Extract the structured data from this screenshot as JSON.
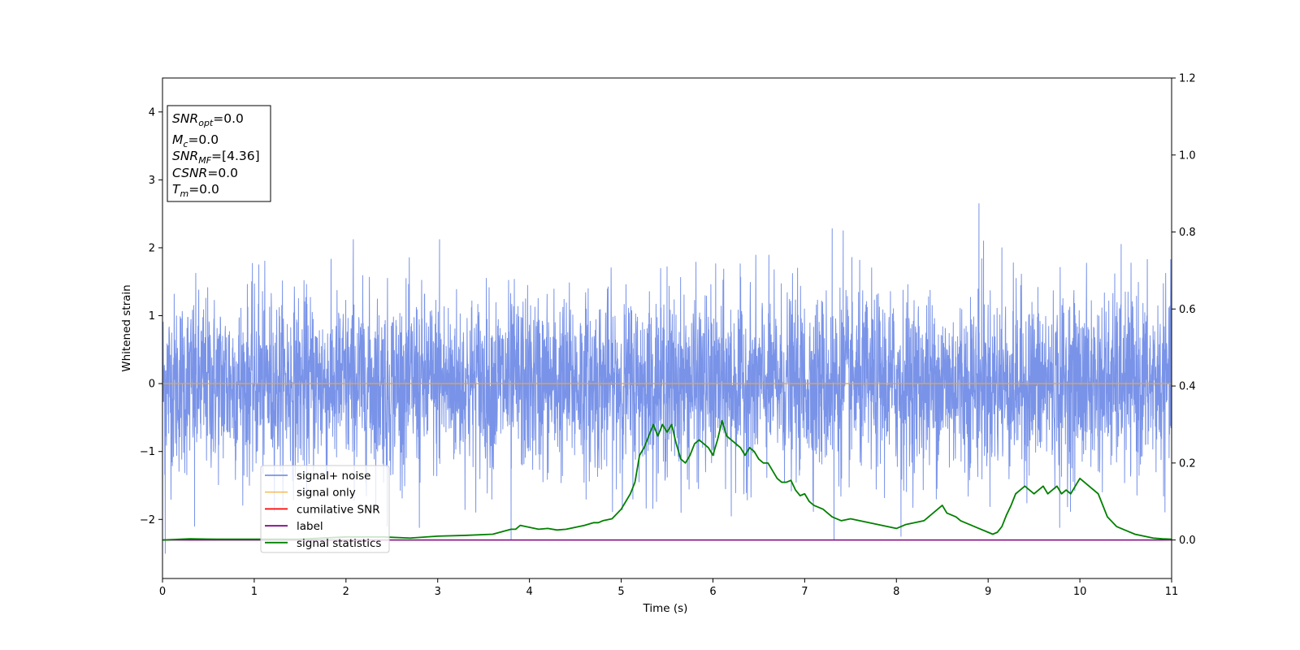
{
  "chart_data": {
    "type": "line",
    "xlabel": "Time (s)",
    "ylabel": "Whitened strain",
    "xlim": [
      0,
      11
    ],
    "ylim": [
      -2.87,
      4.5
    ],
    "y2lim": [
      -0.1,
      1.2
    ],
    "xticks": [
      0,
      1,
      2,
      3,
      4,
      5,
      6,
      7,
      8,
      9,
      10,
      11
    ],
    "yticks": [
      -2,
      -1,
      0,
      1,
      2,
      3,
      4
    ],
    "y2ticks": [
      0.0,
      0.2,
      0.4,
      0.6,
      0.8,
      1.0,
      1.2
    ],
    "xtick_labels": [
      "0",
      "1",
      "2",
      "3",
      "4",
      "5",
      "6",
      "7",
      "8",
      "9",
      "10",
      "11"
    ],
    "ytick_labels": [
      "−2",
      "−1",
      "0",
      "1",
      "2",
      "3",
      "4"
    ],
    "y2tick_labels": [
      "0.0",
      "0.2",
      "0.4",
      "0.6",
      "0.8",
      "1.0",
      "1.2"
    ],
    "grid": false,
    "legend_placement": "lower-left",
    "info_box": {
      "snr_opt": {
        "main": "SNR",
        "sub": "opt",
        "value": "=0.0"
      },
      "mc": {
        "main": "M",
        "sub": "c",
        "value": "=0.0"
      },
      "snr_mf": {
        "main": "SNR",
        "sub": "MF",
        "value": "=[4.36]"
      },
      "csnr": {
        "main": "CSNR",
        "value": "=0.0"
      },
      "tm": {
        "main": "T",
        "sub": "m",
        "value": "=0.0"
      }
    },
    "series": [
      {
        "name": "signal+ noise",
        "color": "#7993e8",
        "axis": "left",
        "description": "dense noise band, amplitude roughly ±1.3 with spikes to ±2.3",
        "noise_envelope": 1.25,
        "spikes": [
          [
            0.03,
            -2.5
          ],
          [
            0.35,
            -2.1
          ],
          [
            1.05,
            1.75
          ],
          [
            2.08,
            2.12
          ],
          [
            2.45,
            -2.1
          ],
          [
            2.8,
            -2.12
          ],
          [
            3.02,
            2.12
          ],
          [
            3.8,
            -2.3
          ],
          [
            5.5,
            1.72
          ],
          [
            6.2,
            -1.95
          ],
          [
            7.3,
            2.28
          ],
          [
            7.32,
            -2.3
          ],
          [
            7.42,
            2.25
          ],
          [
            8.05,
            -2.25
          ],
          [
            8.9,
            2.65
          ],
          [
            8.95,
            2.1
          ],
          [
            9.15,
            2.0
          ],
          [
            9.78,
            -2.12
          ],
          [
            10.45,
            2.05
          ],
          [
            11.0,
            1.7
          ]
        ]
      },
      {
        "name": "signal only",
        "color": "#f5a623",
        "axis": "left",
        "x": [
          0,
          11
        ],
        "y": [
          0,
          0
        ]
      },
      {
        "name": "cumilative SNR",
        "color": "#ff0000",
        "axis": "right",
        "x": [],
        "y": []
      },
      {
        "name": "label",
        "color": "#800080",
        "axis": "right",
        "x": [
          0,
          11
        ],
        "y": [
          0,
          0
        ]
      },
      {
        "name": "signal statistics",
        "color": "#008000",
        "axis": "right",
        "x": [
          0,
          0.3,
          0.6,
          1.0,
          1.5,
          2.0,
          2.4,
          2.7,
          3.0,
          3.3,
          3.6,
          3.8,
          3.85,
          3.9,
          4.0,
          4.1,
          4.2,
          4.3,
          4.4,
          4.5,
          4.6,
          4.7,
          4.75,
          4.8,
          4.9,
          5.0,
          5.05,
          5.1,
          5.15,
          5.2,
          5.25,
          5.3,
          5.35,
          5.4,
          5.45,
          5.5,
          5.55,
          5.6,
          5.65,
          5.7,
          5.75,
          5.8,
          5.85,
          5.9,
          5.95,
          6.0,
          6.05,
          6.1,
          6.15,
          6.2,
          6.25,
          6.3,
          6.35,
          6.4,
          6.45,
          6.5,
          6.55,
          6.6,
          6.65,
          6.7,
          6.75,
          6.8,
          6.85,
          6.9,
          6.95,
          7.0,
          7.05,
          7.1,
          7.2,
          7.3,
          7.4,
          7.5,
          7.6,
          7.7,
          7.8,
          7.9,
          8.0,
          8.1,
          8.2,
          8.3,
          8.4,
          8.45,
          8.5,
          8.55,
          8.6,
          8.65,
          8.7,
          8.8,
          8.9,
          9.0,
          9.05,
          9.1,
          9.15,
          9.2,
          9.25,
          9.3,
          9.35,
          9.4,
          9.45,
          9.5,
          9.55,
          9.6,
          9.65,
          9.7,
          9.75,
          9.8,
          9.85,
          9.9,
          9.95,
          10.0,
          10.05,
          10.1,
          10.2,
          10.3,
          10.4,
          10.5,
          10.6,
          10.7,
          10.8,
          10.9,
          11.0
        ],
        "y": [
          0.0,
          0.003,
          0.002,
          0.002,
          0.002,
          0.008,
          0.008,
          0.005,
          0.01,
          0.012,
          0.015,
          0.028,
          0.028,
          0.038,
          0.033,
          0.028,
          0.03,
          0.026,
          0.028,
          0.033,
          0.038,
          0.045,
          0.045,
          0.05,
          0.055,
          0.08,
          0.1,
          0.12,
          0.15,
          0.22,
          0.24,
          0.27,
          0.3,
          0.27,
          0.3,
          0.28,
          0.3,
          0.25,
          0.21,
          0.2,
          0.22,
          0.25,
          0.26,
          0.25,
          0.24,
          0.22,
          0.26,
          0.31,
          0.27,
          0.26,
          0.25,
          0.24,
          0.22,
          0.24,
          0.23,
          0.21,
          0.2,
          0.2,
          0.18,
          0.16,
          0.15,
          0.15,
          0.155,
          0.13,
          0.115,
          0.12,
          0.1,
          0.09,
          0.08,
          0.06,
          0.05,
          0.055,
          0.05,
          0.045,
          0.04,
          0.035,
          0.03,
          0.04,
          0.045,
          0.05,
          0.07,
          0.08,
          0.09,
          0.07,
          0.065,
          0.06,
          0.05,
          0.04,
          0.03,
          0.02,
          0.015,
          0.02,
          0.035,
          0.065,
          0.09,
          0.12,
          0.13,
          0.14,
          0.13,
          0.12,
          0.13,
          0.14,
          0.12,
          0.13,
          0.14,
          0.12,
          0.13,
          0.12,
          0.14,
          0.16,
          0.15,
          0.14,
          0.12,
          0.06,
          0.035,
          0.025,
          0.015,
          0.01,
          0.005,
          0.003,
          0.002
        ]
      }
    ]
  }
}
